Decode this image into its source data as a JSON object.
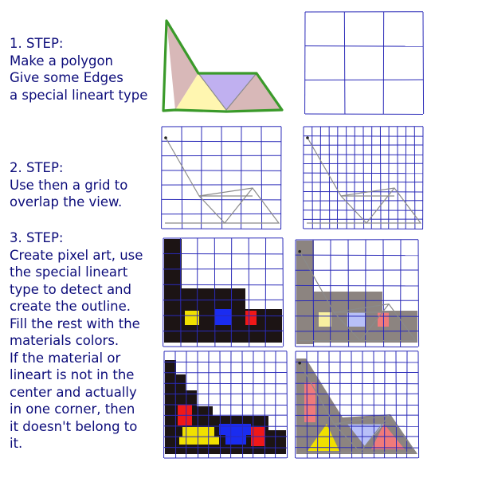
{
  "steps": [
    {
      "heading": "1. STEP:",
      "lines": [
        "Make a polygon",
        "Give some Edges",
        "a special lineart type"
      ]
    },
    {
      "heading": "2. STEP:",
      "lines": [
        "Use then a grid to",
        "overlap the view."
      ]
    },
    {
      "heading": "3. STEP:",
      "lines": [
        "Create pixel art, use",
        "the special lineart",
        "type to detect and",
        "create the outline.",
        "Fill the rest with the",
        "materials colors.",
        "If the material or",
        "lineart is not in the",
        "center and actually",
        "in one corner, then",
        "it doesn't belong to",
        "it."
      ]
    }
  ],
  "colors": {
    "text": "#0c0c7a",
    "grid": "#2a2ab8",
    "lineart": "#3a9a2a",
    "face_pink": "#d8b8b8",
    "face_yellow": "#fff6b0",
    "face_violet": "#c0b0f0",
    "fill_black": "#1c1414",
    "fill_gray": "#8c8480",
    "fill_yellow": "#f0e000",
    "fill_blue": "#1a2cf0",
    "fill_red": "#f01818",
    "fill_pink": "#f07a7a",
    "fill_lightblue": "#b8c0f8",
    "fill_lightyellow": "#f8f0a0"
  }
}
